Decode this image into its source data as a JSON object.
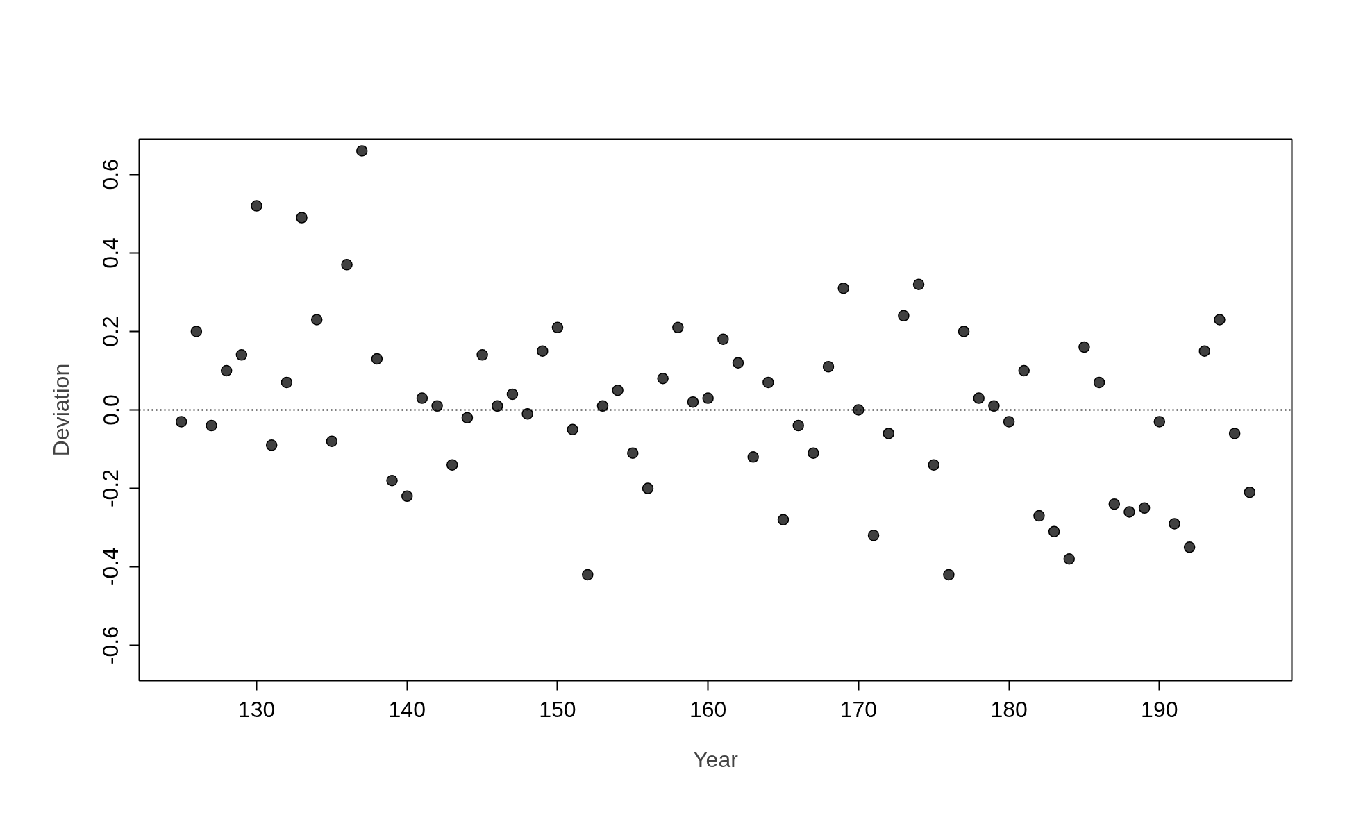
{
  "chart_data": {
    "type": "scatter",
    "xlabel": "Year",
    "ylabel": "Deviation",
    "x": [
      125,
      126,
      127,
      128,
      129,
      130,
      131,
      132,
      133,
      134,
      135,
      136,
      137,
      138,
      139,
      140,
      141,
      142,
      143,
      144,
      145,
      146,
      147,
      148,
      149,
      150,
      151,
      152,
      153,
      154,
      155,
      156,
      157,
      158,
      159,
      160,
      161,
      162,
      163,
      164,
      165,
      166,
      167,
      168,
      169,
      170,
      171,
      172,
      173,
      174,
      175,
      176,
      177,
      178,
      179,
      180,
      181,
      182,
      183,
      184,
      185,
      186,
      187,
      188,
      189,
      190,
      191,
      192,
      193,
      194,
      195,
      196
    ],
    "series": [
      {
        "color": "#404040",
        "values": [
          -0.03,
          0.2,
          -0.04,
          0.1,
          0.14,
          0.52,
          -0.09,
          0.07,
          0.49,
          0.23,
          -0.08,
          0.37,
          0.66,
          0.13,
          -0.18,
          -0.22,
          0.03,
          0.01,
          -0.14,
          -0.02,
          0.14,
          0.01,
          0.04,
          -0.01,
          0.15,
          0.21,
          -0.05,
          -0.42,
          0.01,
          0.05,
          -0.11,
          -0.2,
          0.08,
          0.21,
          0.02,
          0.03,
          0.18,
          0.12,
          -0.12,
          0.07,
          -0.28,
          -0.04,
          -0.11,
          0.11,
          0.31,
          0.0,
          -0.32,
          -0.06,
          0.24,
          0.32,
          -0.14,
          -0.42,
          0.2,
          0.03,
          0.01,
          -0.03,
          0.1,
          -0.27,
          -0.31,
          -0.38,
          0.16,
          0.07,
          -0.24,
          -0.26,
          -0.25,
          -0.03,
          -0.29,
          -0.35,
          0.15,
          0.23,
          -0.06,
          -0.21
        ]
      }
    ],
    "xlim": [
      122.2,
      198.8
    ],
    "ylim": [
      -0.69,
      0.69
    ],
    "xticks": [
      130,
      140,
      150,
      160,
      170,
      180,
      190
    ],
    "yticks": [
      {
        "value": -0.6,
        "label": "-0.6"
      },
      {
        "value": -0.4,
        "label": "-0.4"
      },
      {
        "value": -0.2,
        "label": "-0.2"
      },
      {
        "value": 0,
        "label": "0.0"
      },
      {
        "value": 0.2,
        "label": "0.2"
      },
      {
        "value": 0.4,
        "label": "0.4"
      },
      {
        "value": 0.6,
        "label": "0.6"
      }
    ],
    "ref_lines": [
      {
        "axis": "y",
        "value": 0,
        "line_style": "dotted",
        "color": "#000000"
      }
    ],
    "grid": false,
    "marker": "circle"
  }
}
